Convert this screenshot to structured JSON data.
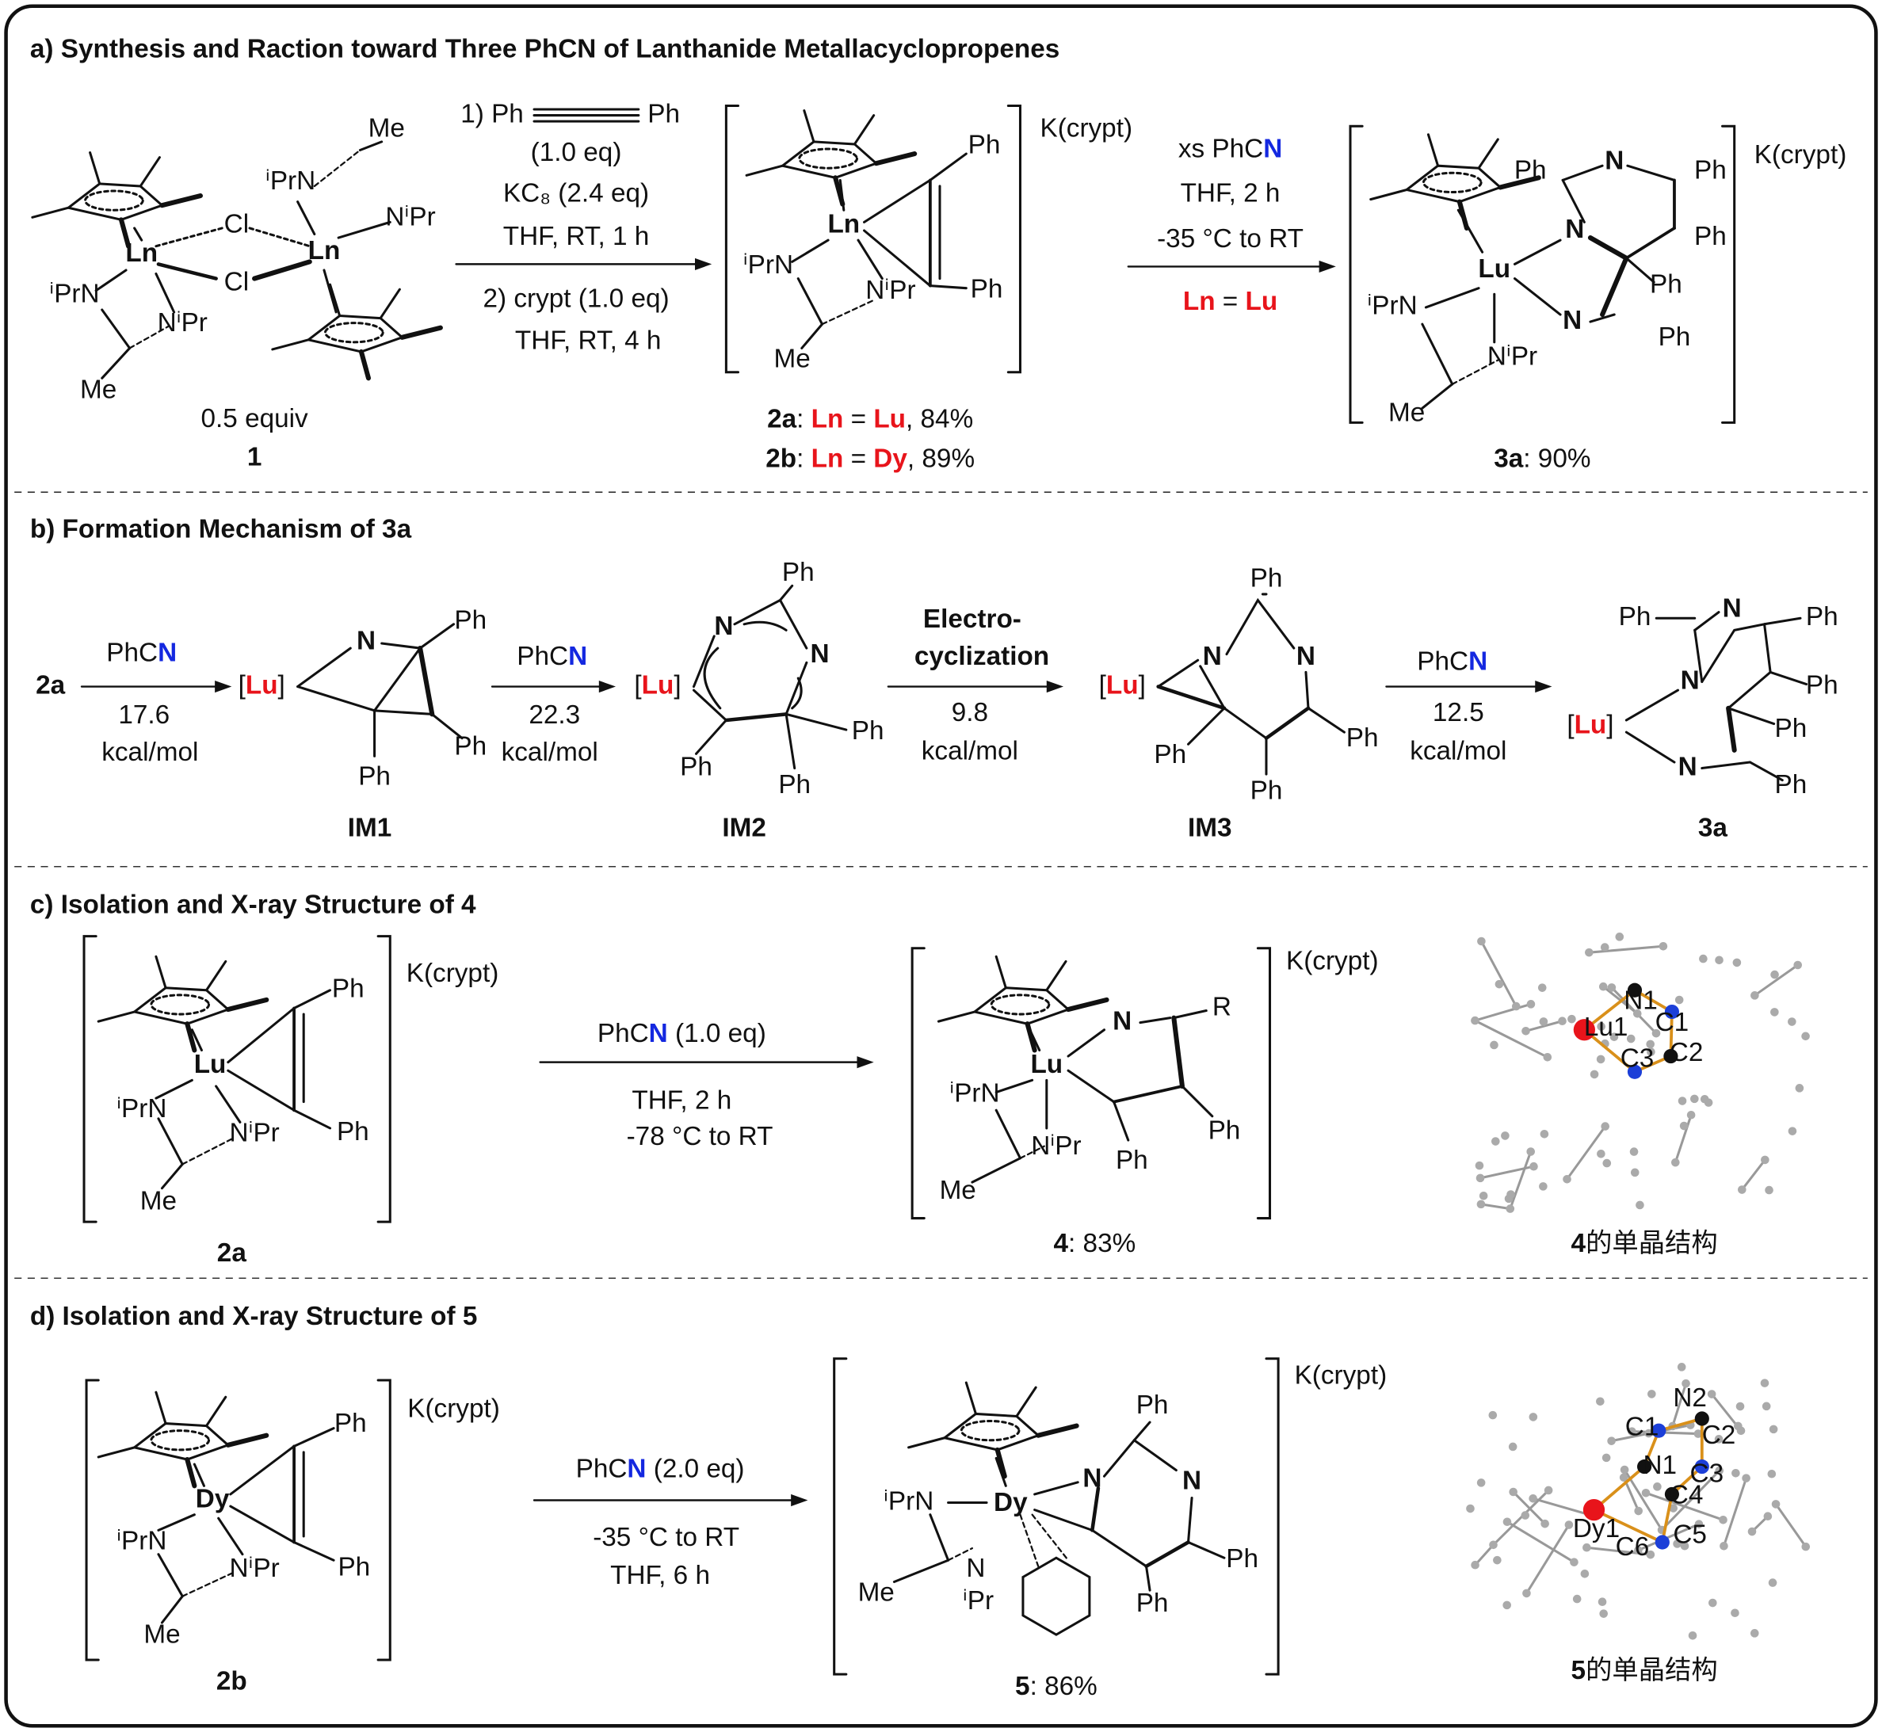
{
  "sections": [
    {
      "title": "a) Synthesis and Raction toward Three PhCN of Lanthanide Metallacyclopropenes",
      "labels": [
        "Ln",
        "Ln",
        "Cl",
        "Cl",
        "ⁱPrN",
        "NⁱPr",
        "Me",
        "ⁱPrN",
        "Me",
        "NⁱPr",
        "0.5 equiv",
        "1",
        "1) Ph",
        "Ph",
        "(1.0 eq)",
        "KC₈ (2.4 eq)",
        "THF, RT, 1 h",
        "2) crypt (1.0 eq)",
        "THF, RT, 4 h",
        "Ln",
        "Ph",
        "Ph",
        "ⁱPrN",
        "NⁱPr",
        "Me",
        "K(crypt)",
        [
          "2a",
          ": ",
          "Ln",
          " = ",
          "Lu",
          ", 84%"
        ],
        [
          "2b",
          ": ",
          "Ln",
          " = ",
          "Dy",
          ", 89%"
        ],
        [
          "xs PhC",
          "N"
        ],
        "THF, 2 h",
        "-35 °C to RT",
        [
          "Ln",
          " = ",
          "Lu"
        ],
        "Lu",
        "Ph",
        "N",
        "Ph",
        "N",
        "Ph",
        "Ph",
        "N",
        "Ph",
        "ⁱPrN",
        "NⁱPr",
        "Me",
        [
          "3a",
          ": 90%"
        ],
        "K(crypt)"
      ]
    },
    {
      "title": "b) Formation Mechanism of 3a",
      "labels": [
        "2a",
        [
          "PhC",
          "N"
        ],
        "17.6",
        "kcal/mol",
        [
          "[",
          "Lu",
          "]"
        ],
        "N",
        "Ph",
        "Ph",
        "Ph",
        "IM1",
        [
          "PhC",
          "N"
        ],
        "22.3",
        "kcal/mol",
        [
          "[",
          "Lu",
          "]"
        ],
        "N",
        "Ph",
        "N",
        "Ph",
        "Ph",
        "Ph",
        "IM2",
        "Electro-",
        "cyclization",
        "9.8",
        "kcal/mol",
        [
          "[",
          "Lu",
          "]"
        ],
        "N",
        "Ph",
        "N",
        "Ph",
        "Ph",
        "Ph",
        "IM3",
        [
          "PhC",
          "N"
        ],
        "12.5",
        "kcal/mol",
        "Ph",
        "N",
        "Ph",
        "N",
        "Ph",
        [
          "[",
          "Lu",
          "]"
        ],
        "Ph",
        "N",
        "Ph",
        "3a"
      ]
    },
    {
      "title": "c) Isolation and X-ray Structure of 4",
      "labels": [
        "Lu",
        "Ph",
        "ⁱPrN",
        "NⁱPr",
        "Ph",
        "Me",
        "K(crypt)",
        "2a",
        [
          "PhC",
          "N",
          " (1.0 eq)"
        ],
        "THF, 2 h",
        "-78 °C to RT",
        "N",
        "R",
        "Lu",
        "ⁱPrN",
        "NⁱPr",
        "Ph",
        "Ph",
        "Me",
        "K(crypt)",
        [
          "4",
          ": 83%"
        ],
        [
          "4",
          "的单晶结构"
        ],
        "N1",
        "C1",
        "Lu1",
        "C3",
        "C2"
      ]
    },
    {
      "title": "d) Isolation and X-ray Structure of 5",
      "labels": [
        "Dy",
        "Ph",
        "ⁱPrN",
        "NⁱPr",
        "Ph",
        "Me",
        "K(crypt)",
        "2b",
        [
          "PhC",
          "N",
          " (2.0 eq)"
        ],
        "-35 °C to RT",
        "THF, 6 h",
        "Ph",
        "ⁱPrN",
        "Dy",
        "N",
        "N",
        "N",
        "ⁱPr",
        "Me",
        "Ph",
        "Ph",
        "K(crypt)",
        [
          "5",
          ": 86%"
        ],
        [
          "5",
          "的单晶结构"
        ],
        "N2",
        "C1",
        "C2",
        "N1",
        "C3",
        "C4",
        "C5",
        "C6",
        "Dy1"
      ]
    }
  ]
}
